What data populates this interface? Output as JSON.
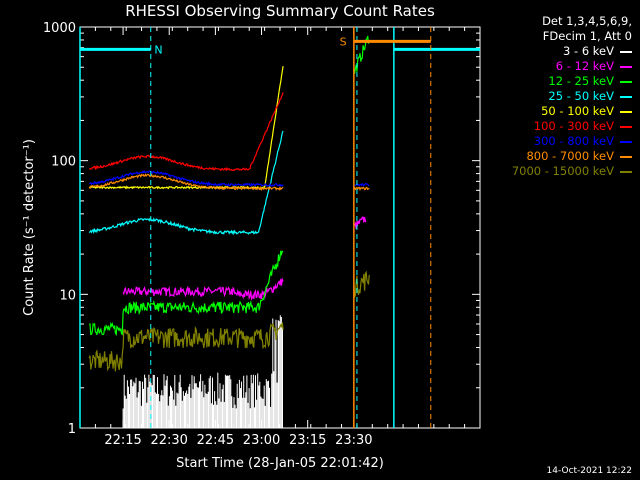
{
  "chart_data": {
    "type": "line",
    "title": "RHESSI Observing Summary Count Rates",
    "xlabel": "Start Time (28-Jan-05 22:01:42)",
    "ylabel": "Count Rate (s⁻¹ detector⁻¹)",
    "yscale": "log",
    "ylim": [
      1,
      1000
    ],
    "x_minutes_range": [
      0,
      130
    ],
    "x_ticks": [
      {
        "minute": 14,
        "label": "22:15"
      },
      {
        "minute": 29,
        "label": "22:30"
      },
      {
        "minute": 44,
        "label": "22:45"
      },
      {
        "minute": 59,
        "label": "23:00"
      },
      {
        "minute": 74,
        "label": "23:15"
      },
      {
        "minute": 89,
        "label": "23:30"
      }
    ],
    "y_ticks": [
      {
        "value": 1,
        "label": "1"
      },
      {
        "value": 10,
        "label": "10"
      },
      {
        "value": 100,
        "label": "100"
      },
      {
        "value": 1000,
        "label": "1000"
      }
    ],
    "legend_header": [
      "Det 1,3,4,5,6,9,",
      "FDecim 1, Att 0"
    ],
    "series": [
      {
        "name": "3 - 6 keV",
        "color": "#ffffff"
      },
      {
        "name": "6 - 12 keV",
        "color": "#ff00ff"
      },
      {
        "name": "12 - 25 keV",
        "color": "#00ff00"
      },
      {
        "name": "25 - 50 keV",
        "color": "#00ffff"
      },
      {
        "name": "50 - 100 keV",
        "color": "#ffff00"
      },
      {
        "name": "100 - 300 keV",
        "color": "#ff0000"
      },
      {
        "name": "300 - 800 keV",
        "color": "#0000ff"
      },
      {
        "name": "800 - 7000 keV",
        "color": "#ff8c00"
      },
      {
        "name": "7000 - 15000 keV",
        "color": "#808000"
      }
    ],
    "flags": [
      {
        "label": "N",
        "color": "#00ffff"
      },
      {
        "label": "S",
        "color": "#ff8c00"
      }
    ],
    "date_stamp": "14-Oct-2021 12:22"
  }
}
